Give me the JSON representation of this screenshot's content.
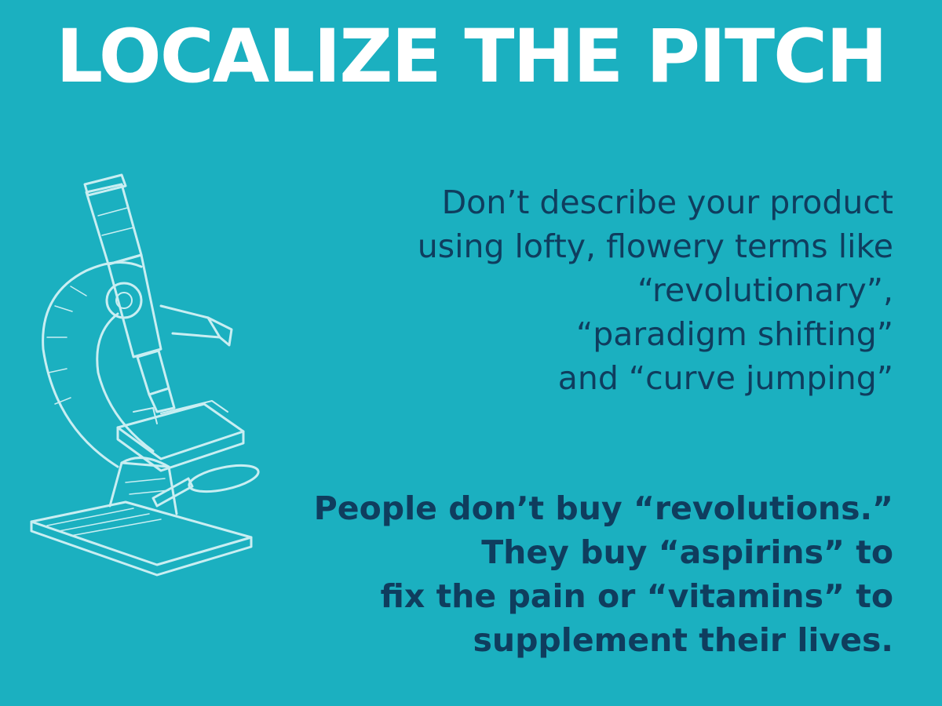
{
  "colors": {
    "background": "#1bb0c0",
    "title": "#ffffff",
    "body_text": "#0f3d5e",
    "illustration": "#c9eef2"
  },
  "title": "LOCALIZE THE PITCH",
  "illustration_icon": "microscope-icon",
  "paragraph_1": {
    "lines": [
      "Don’t describe your product",
      "using lofty, flowery terms like",
      "“revolutionary”,",
      "“paradigm shifting”",
      "and “curve jumping”"
    ]
  },
  "paragraph_2": {
    "lines": [
      "People don’t buy “revolutions.”",
      "They buy “aspirins” to",
      "fix the pain or “vitamins” to",
      "supplement their lives."
    ]
  }
}
